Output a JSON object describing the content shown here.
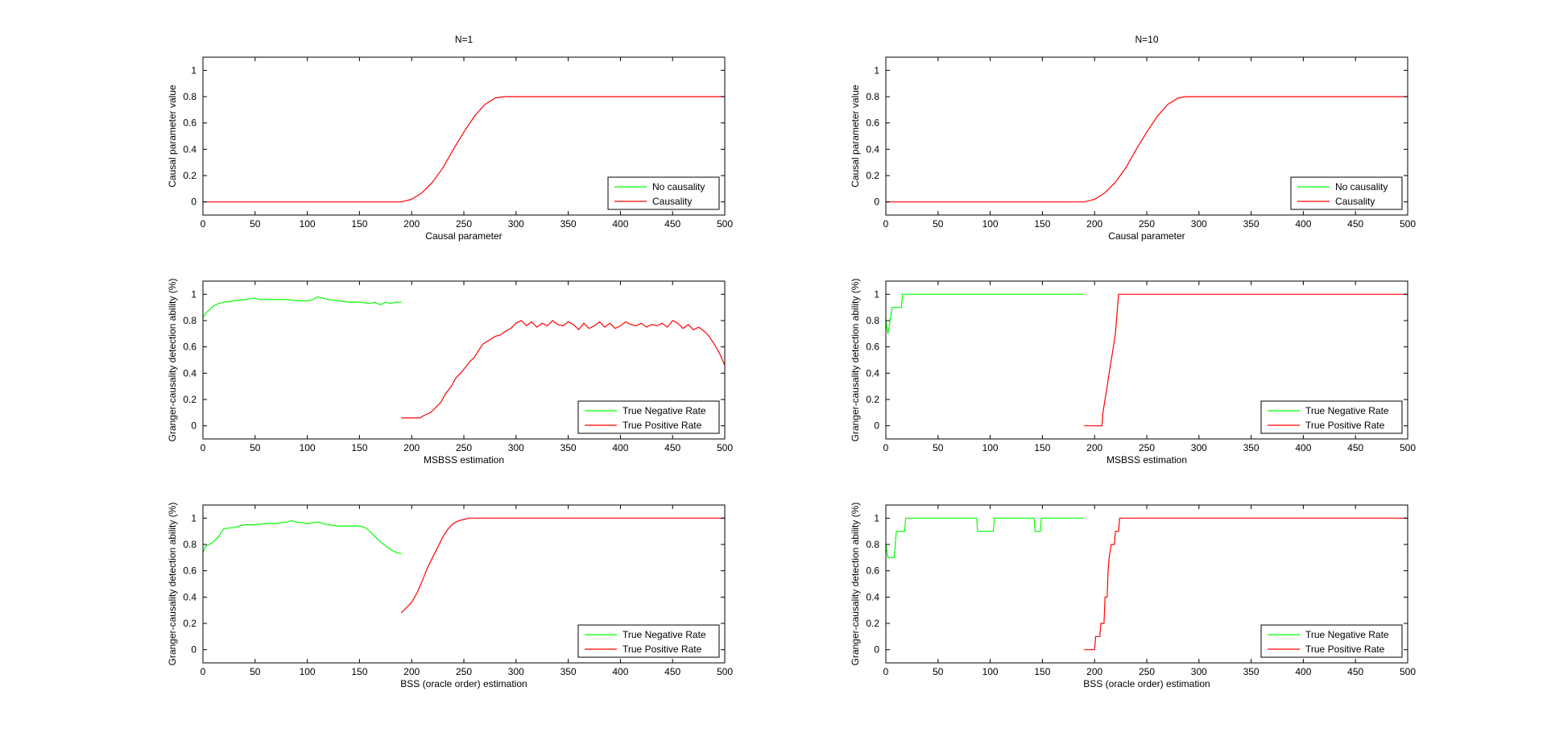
{
  "figure": {
    "colors": {
      "negative": "#00ff00",
      "positive": "#ff0000",
      "axis": "#000000"
    }
  },
  "chart_data": [
    {
      "id": "p1",
      "type": "line",
      "title": "N=1",
      "xlabel": "Causal parameter",
      "ylabel": "Causal parameter value",
      "xlim": [
        0,
        500
      ],
      "ylim": [
        -0.1,
        1.1
      ],
      "xticks": [
        0,
        50,
        100,
        150,
        200,
        250,
        300,
        350,
        400,
        450,
        500
      ],
      "yticks": [
        0,
        0.2,
        0.4,
        0.6,
        0.8,
        1
      ],
      "legend": {
        "position": "bottom-right",
        "entries": [
          "No causality",
          "Causality"
        ]
      },
      "series": [
        {
          "name": "No causality",
          "color": "#00ff00",
          "points": []
        },
        {
          "name": "Causality",
          "color": "#ff0000",
          "points": [
            [
              0,
              0
            ],
            [
              190,
              0
            ],
            [
              200,
              0.02
            ],
            [
              210,
              0.07
            ],
            [
              220,
              0.15
            ],
            [
              230,
              0.26
            ],
            [
              240,
              0.4
            ],
            [
              250,
              0.53
            ],
            [
              260,
              0.65
            ],
            [
              270,
              0.74
            ],
            [
              280,
              0.79
            ],
            [
              288,
              0.8
            ],
            [
              500,
              0.8
            ]
          ]
        }
      ]
    },
    {
      "id": "p2",
      "type": "line",
      "title": "N=10",
      "xlabel": "Causal parameter",
      "ylabel": "Causal parameter value",
      "xlim": [
        0,
        500
      ],
      "ylim": [
        -0.1,
        1.1
      ],
      "xticks": [
        0,
        50,
        100,
        150,
        200,
        250,
        300,
        350,
        400,
        450,
        500
      ],
      "yticks": [
        0,
        0.2,
        0.4,
        0.6,
        0.8,
        1
      ],
      "legend": {
        "position": "bottom-right",
        "entries": [
          "No causality",
          "Causality"
        ]
      },
      "series": [
        {
          "name": "No causality",
          "color": "#00ff00",
          "points": []
        },
        {
          "name": "Causality",
          "color": "#ff0000",
          "points": [
            [
              0,
              0
            ],
            [
              190,
              0
            ],
            [
              200,
              0.02
            ],
            [
              210,
              0.07
            ],
            [
              220,
              0.15
            ],
            [
              230,
              0.26
            ],
            [
              240,
              0.4
            ],
            [
              250,
              0.53
            ],
            [
              260,
              0.65
            ],
            [
              270,
              0.74
            ],
            [
              280,
              0.79
            ],
            [
              288,
              0.8
            ],
            [
              500,
              0.8
            ]
          ]
        }
      ]
    },
    {
      "id": "p3",
      "type": "line",
      "title": "",
      "xlabel": "MSBSS estimation",
      "ylabel": "Granger-causality detection ability (%)",
      "xlim": [
        0,
        500
      ],
      "ylim": [
        -0.1,
        1.1
      ],
      "xticks": [
        0,
        50,
        100,
        150,
        200,
        250,
        300,
        350,
        400,
        450,
        500
      ],
      "yticks": [
        0,
        0.2,
        0.4,
        0.6,
        0.8,
        1
      ],
      "legend": {
        "position": "bottom-right",
        "entries": [
          "True Negative Rate",
          "True Positive Rate"
        ]
      },
      "series": [
        {
          "name": "True Negative Rate",
          "color": "#00ff00",
          "points": [
            [
              0,
              0.82
            ],
            [
              3,
              0.86
            ],
            [
              6,
              0.88
            ],
            [
              10,
              0.91
            ],
            [
              15,
              0.93
            ],
            [
              20,
              0.94
            ],
            [
              30,
              0.95
            ],
            [
              40,
              0.96
            ],
            [
              50,
              0.97
            ],
            [
              55,
              0.96
            ],
            [
              70,
              0.96
            ],
            [
              80,
              0.96
            ],
            [
              90,
              0.95
            ],
            [
              100,
              0.95
            ],
            [
              105,
              0.96
            ],
            [
              110,
              0.98
            ],
            [
              115,
              0.97
            ],
            [
              120,
              0.96
            ],
            [
              130,
              0.95
            ],
            [
              140,
              0.94
            ],
            [
              150,
              0.94
            ],
            [
              160,
              0.93
            ],
            [
              165,
              0.94
            ],
            [
              170,
              0.92
            ],
            [
              175,
              0.94
            ],
            [
              180,
              0.93
            ],
            [
              185,
              0.94
            ],
            [
              190,
              0.94
            ]
          ]
        },
        {
          "name": "True Positive Rate",
          "color": "#ff0000",
          "points": [
            [
              190,
              0.06
            ],
            [
              200,
              0.06
            ],
            [
              208,
              0.06
            ],
            [
              212,
              0.08
            ],
            [
              218,
              0.1
            ],
            [
              222,
              0.13
            ],
            [
              228,
              0.18
            ],
            [
              232,
              0.24
            ],
            [
              238,
              0.3
            ],
            [
              242,
              0.36
            ],
            [
              248,
              0.41
            ],
            [
              252,
              0.45
            ],
            [
              256,
              0.49
            ],
            [
              260,
              0.52
            ],
            [
              264,
              0.57
            ],
            [
              268,
              0.62
            ],
            [
              272,
              0.64
            ],
            [
              276,
              0.66
            ],
            [
              280,
              0.68
            ],
            [
              285,
              0.69
            ],
            [
              290,
              0.72
            ],
            [
              295,
              0.74
            ],
            [
              300,
              0.78
            ],
            [
              305,
              0.8
            ],
            [
              310,
              0.76
            ],
            [
              315,
              0.79
            ],
            [
              320,
              0.75
            ],
            [
              325,
              0.78
            ],
            [
              330,
              0.76
            ],
            [
              335,
              0.8
            ],
            [
              340,
              0.77
            ],
            [
              345,
              0.76
            ],
            [
              350,
              0.79
            ],
            [
              355,
              0.77
            ],
            [
              360,
              0.73
            ],
            [
              365,
              0.78
            ],
            [
              370,
              0.74
            ],
            [
              375,
              0.76
            ],
            [
              380,
              0.79
            ],
            [
              385,
              0.75
            ],
            [
              390,
              0.78
            ],
            [
              395,
              0.74
            ],
            [
              400,
              0.76
            ],
            [
              405,
              0.79
            ],
            [
              410,
              0.77
            ],
            [
              415,
              0.76
            ],
            [
              420,
              0.78
            ],
            [
              425,
              0.75
            ],
            [
              430,
              0.77
            ],
            [
              435,
              0.76
            ],
            [
              440,
              0.78
            ],
            [
              445,
              0.75
            ],
            [
              450,
              0.8
            ],
            [
              455,
              0.78
            ],
            [
              460,
              0.74
            ],
            [
              465,
              0.77
            ],
            [
              470,
              0.73
            ],
            [
              475,
              0.75
            ],
            [
              480,
              0.72
            ],
            [
              485,
              0.68
            ],
            [
              490,
              0.62
            ],
            [
              495,
              0.55
            ],
            [
              500,
              0.46
            ]
          ]
        }
      ]
    },
    {
      "id": "p4",
      "type": "line",
      "title": "",
      "xlabel": "MSBSS estimation",
      "ylabel": "Granger-causality detection ability (%)",
      "xlim": [
        0,
        500
      ],
      "ylim": [
        -0.1,
        1.1
      ],
      "xticks": [
        0,
        50,
        100,
        150,
        200,
        250,
        300,
        350,
        400,
        450,
        500
      ],
      "yticks": [
        0,
        0.2,
        0.4,
        0.6,
        0.8,
        1
      ],
      "legend": {
        "position": "bottom-right",
        "entries": [
          "True Negative Rate",
          "True Positive Rate"
        ]
      },
      "series": [
        {
          "name": "True Negative Rate",
          "color": "#00ff00",
          "points": [
            [
              0,
              0.8
            ],
            [
              2,
              0.7
            ],
            [
              4,
              0.8
            ],
            [
              6,
              0.9
            ],
            [
              8,
              0.9
            ],
            [
              15,
              0.9
            ],
            [
              16,
              1
            ],
            [
              190,
              1
            ]
          ]
        },
        {
          "name": "True Positive Rate",
          "color": "#ff0000",
          "points": [
            [
              190,
              0
            ],
            [
              207,
              0
            ],
            [
              208,
              0.1
            ],
            [
              210,
              0.2
            ],
            [
              212,
              0.3
            ],
            [
              214,
              0.4
            ],
            [
              216,
              0.5
            ],
            [
              218,
              0.6
            ],
            [
              220,
              0.7
            ],
            [
              221,
              0.8
            ],
            [
              222,
              0.9
            ],
            [
              223,
              1
            ],
            [
              500,
              1
            ]
          ]
        }
      ]
    },
    {
      "id": "p5",
      "type": "line",
      "title": "",
      "xlabel": "BSS (oracle order) estimation",
      "ylabel": "Granger-causality detection ability (%)",
      "xlim": [
        0,
        500
      ],
      "ylim": [
        -0.1,
        1.1
      ],
      "xticks": [
        0,
        50,
        100,
        150,
        200,
        250,
        300,
        350,
        400,
        450,
        500
      ],
      "yticks": [
        0,
        0.2,
        0.4,
        0.6,
        0.8,
        1
      ],
      "legend": {
        "position": "bottom-right",
        "entries": [
          "True Negative Rate",
          "True Positive Rate"
        ]
      },
      "series": [
        {
          "name": "True Negative Rate",
          "color": "#00ff00",
          "points": [
            [
              0,
              0.74
            ],
            [
              3,
              0.79
            ],
            [
              6,
              0.8
            ],
            [
              10,
              0.82
            ],
            [
              15,
              0.86
            ],
            [
              20,
              0.92
            ],
            [
              30,
              0.93
            ],
            [
              40,
              0.95
            ],
            [
              50,
              0.95
            ],
            [
              60,
              0.96
            ],
            [
              70,
              0.96
            ],
            [
              80,
              0.97
            ],
            [
              85,
              0.98
            ],
            [
              90,
              0.97
            ],
            [
              100,
              0.96
            ],
            [
              110,
              0.97
            ],
            [
              120,
              0.95
            ],
            [
              130,
              0.94
            ],
            [
              140,
              0.94
            ],
            [
              150,
              0.94
            ],
            [
              155,
              0.93
            ],
            [
              160,
              0.9
            ],
            [
              165,
              0.86
            ],
            [
              170,
              0.82
            ],
            [
              175,
              0.79
            ],
            [
              180,
              0.76
            ],
            [
              185,
              0.74
            ],
            [
              190,
              0.73
            ]
          ]
        },
        {
          "name": "True Positive Rate",
          "color": "#ff0000",
          "points": [
            [
              190,
              0.28
            ],
            [
              195,
              0.32
            ],
            [
              200,
              0.36
            ],
            [
              205,
              0.43
            ],
            [
              210,
              0.52
            ],
            [
              215,
              0.62
            ],
            [
              220,
              0.7
            ],
            [
              225,
              0.78
            ],
            [
              230,
              0.86
            ],
            [
              235,
              0.92
            ],
            [
              240,
              0.96
            ],
            [
              245,
              0.98
            ],
            [
              250,
              0.99
            ],
            [
              255,
              1
            ],
            [
              500,
              1
            ]
          ]
        }
      ]
    },
    {
      "id": "p6",
      "type": "line",
      "title": "",
      "xlabel": "BSS (oracle order) estimation",
      "ylabel": "Granger-causality detection ability (%)",
      "xlim": [
        0,
        500
      ],
      "ylim": [
        -0.1,
        1.1
      ],
      "xticks": [
        0,
        50,
        100,
        150,
        200,
        250,
        300,
        350,
        400,
        450,
        500
      ],
      "yticks": [
        0,
        0.2,
        0.4,
        0.6,
        0.8,
        1
      ],
      "legend": {
        "position": "bottom-right",
        "entries": [
          "True Negative Rate",
          "True Positive Rate"
        ]
      },
      "series": [
        {
          "name": "True Negative Rate",
          "color": "#00ff00",
          "points": [
            [
              0,
              0.8
            ],
            [
              2,
              0.7
            ],
            [
              8,
              0.7
            ],
            [
              9,
              0.8
            ],
            [
              10,
              0.9
            ],
            [
              18,
              0.9
            ],
            [
              19,
              1
            ],
            [
              87,
              1
            ],
            [
              88,
              0.9
            ],
            [
              103,
              0.9
            ],
            [
              104,
              1
            ],
            [
              142,
              1
            ],
            [
              143,
              0.9
            ],
            [
              148,
              0.9
            ],
            [
              149,
              1
            ],
            [
              190,
              1
            ]
          ]
        },
        {
          "name": "True Positive Rate",
          "color": "#ff0000",
          "points": [
            [
              190,
              0
            ],
            [
              200,
              0
            ],
            [
              201,
              0.1
            ],
            [
              205,
              0.1
            ],
            [
              206,
              0.2
            ],
            [
              209,
              0.2
            ],
            [
              210,
              0.4
            ],
            [
              212,
              0.4
            ],
            [
              213,
              0.6
            ],
            [
              214,
              0.7
            ],
            [
              216,
              0.8
            ],
            [
              219,
              0.8
            ],
            [
              220,
              0.9
            ],
            [
              223,
              0.9
            ],
            [
              224,
              1
            ],
            [
              500,
              1
            ]
          ]
        }
      ]
    }
  ]
}
